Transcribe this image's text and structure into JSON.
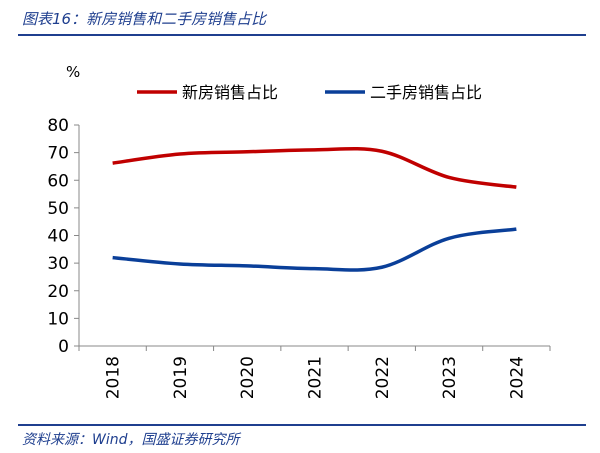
{
  "title": "图表16：新房销售和二手房销售占比",
  "source": "资料来源：Wind，国盛证券研究所",
  "chart_data": {
    "type": "line",
    "ylabel": "%",
    "ylim": [
      0,
      80
    ],
    "yticks": [
      0,
      10,
      20,
      30,
      40,
      50,
      60,
      70,
      80
    ],
    "categories": [
      "2018",
      "2019",
      "2020",
      "2021",
      "2022",
      "2023",
      "2024"
    ],
    "legend_position": "top",
    "grid": false,
    "series": [
      {
        "name": "新房销售占比",
        "color": "#c00000",
        "values": [
          66.2,
          69.5,
          70.3,
          71.0,
          70.5,
          61.0,
          57.5
        ]
      },
      {
        "name": "二手房销售占比",
        "color": "#0a3f99",
        "values": [
          32.0,
          29.7,
          29.0,
          28.0,
          28.5,
          39.0,
          42.3
        ]
      }
    ]
  }
}
